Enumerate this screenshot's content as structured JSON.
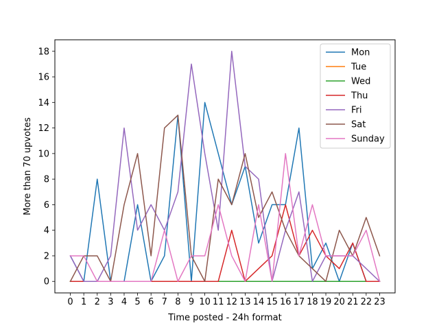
{
  "chart_data": {
    "type": "line",
    "title": "",
    "xlabel": "Time posted - 24h format",
    "ylabel": "More than 70 upvotes",
    "x": [
      0,
      1,
      2,
      3,
      4,
      5,
      6,
      7,
      8,
      9,
      10,
      11,
      12,
      13,
      14,
      15,
      16,
      17,
      18,
      19,
      20,
      21,
      22,
      23
    ],
    "xlim": [
      -1.15,
      24.15
    ],
    "ylim": [
      -0.9,
      18.9
    ],
    "yticks": [
      0,
      2,
      4,
      6,
      8,
      10,
      12,
      14,
      16,
      18
    ],
    "xticks": [
      0,
      1,
      2,
      3,
      4,
      5,
      6,
      7,
      8,
      9,
      10,
      11,
      12,
      13,
      14,
      15,
      16,
      17,
      18,
      19,
      20,
      21,
      22,
      23
    ],
    "grid": false,
    "legend_position": "top-right",
    "series": [
      {
        "name": "Mon",
        "color": "#1f77b4",
        "values": [
          2,
          0,
          8,
          0,
          0,
          6,
          0,
          2,
          13,
          0,
          14,
          10,
          6,
          9,
          3,
          6,
          6,
          12,
          1,
          3,
          0,
          3,
          0,
          0
        ]
      },
      {
        "name": "Tue",
        "color": "#ff7f0e",
        "values": [
          0,
          0,
          0,
          0,
          0,
          0,
          0,
          0,
          0,
          0,
          0,
          0,
          0,
          0,
          0,
          0,
          0,
          0,
          0,
          0,
          0,
          0,
          0,
          0
        ]
      },
      {
        "name": "Wed",
        "color": "#2ca02c",
        "values": [
          0,
          0,
          0,
          0,
          0,
          0,
          0,
          0,
          0,
          0,
          0,
          0,
          0,
          0,
          0,
          0,
          0,
          0,
          0,
          0,
          0,
          0,
          0,
          0
        ]
      },
      {
        "name": "Thu",
        "color": "#d62728",
        "values": [
          0,
          0,
          0,
          0,
          0,
          0,
          0,
          0,
          0,
          0,
          0,
          0,
          4,
          0,
          1,
          2,
          6,
          2,
          4,
          2,
          1,
          3,
          0,
          0
        ]
      },
      {
        "name": "Fri",
        "color": "#9467bd",
        "values": [
          2,
          0,
          0,
          2,
          12,
          4,
          6,
          4,
          7,
          17,
          10,
          4,
          18,
          9,
          8,
          0,
          4,
          7,
          0,
          2,
          2,
          2,
          1,
          0
        ]
      },
      {
        "name": "Sat",
        "color": "#8c564b",
        "values": [
          0,
          2,
          2,
          0,
          6,
          10,
          2,
          12,
          13,
          2,
          0,
          8,
          6,
          10,
          5,
          7,
          4,
          2,
          1,
          0,
          4,
          2,
          5,
          2
        ]
      },
      {
        "name": "Sunday",
        "color": "#e377c2",
        "values": [
          2,
          2,
          0,
          0,
          0,
          0,
          0,
          4,
          0,
          2,
          2,
          6,
          2,
          0,
          6,
          0,
          10,
          2,
          6,
          2,
          2,
          2,
          4,
          0
        ]
      }
    ]
  }
}
